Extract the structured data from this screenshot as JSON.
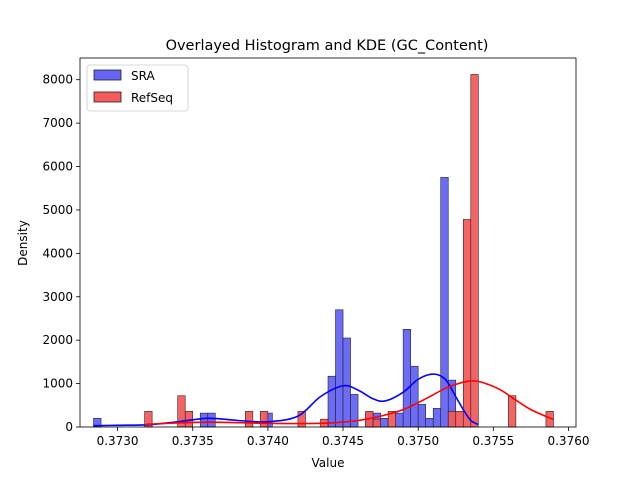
{
  "chart_data": {
    "type": "histogram+kde",
    "title": "Overlayed Histogram and KDE (GC_Content)",
    "xlabel": "Value",
    "ylabel": "Density",
    "xlim": [
      0.37275,
      0.37605
    ],
    "ylim": [
      0,
      8500
    ],
    "xticks": [
      0.373,
      0.3735,
      0.374,
      0.3745,
      0.375,
      0.3755,
      0.376
    ],
    "xtick_labels": [
      "0.3730",
      "0.3735",
      "0.3740",
      "0.3745",
      "0.3750",
      "0.3755",
      "0.3760"
    ],
    "yticks": [
      0,
      1000,
      2000,
      3000,
      4000,
      5000,
      6000,
      7000,
      8000
    ],
    "ytick_labels": [
      "0",
      "1000",
      "2000",
      "3000",
      "4000",
      "5000",
      "6000",
      "7000",
      "8000"
    ],
    "legend": {
      "placement": "top-left",
      "entries": [
        "SRA",
        "RefSeq"
      ]
    },
    "grid": false,
    "series": [
      {
        "name": "SRA",
        "color": "#0000ff",
        "fill": "#6464f5",
        "bins": [
          {
            "x0": 0.37284,
            "x1": 0.37289,
            "y": 200
          },
          {
            "x0": 0.37355,
            "x1": 0.3736,
            "y": 320
          },
          {
            "x0": 0.3736,
            "x1": 0.37365,
            "y": 320
          },
          {
            "x0": 0.37398,
            "x1": 0.37403,
            "y": 320
          },
          {
            "x0": 0.3744,
            "x1": 0.37445,
            "y": 1170
          },
          {
            "x0": 0.37445,
            "x1": 0.3745,
            "y": 2700
          },
          {
            "x0": 0.3745,
            "x1": 0.37455,
            "y": 2050
          },
          {
            "x0": 0.37455,
            "x1": 0.3746,
            "y": 750
          },
          {
            "x0": 0.37465,
            "x1": 0.3747,
            "y": 320
          },
          {
            "x0": 0.3747,
            "x1": 0.37475,
            "y": 320
          },
          {
            "x0": 0.37475,
            "x1": 0.3748,
            "y": 200
          },
          {
            "x0": 0.37485,
            "x1": 0.3749,
            "y": 320
          },
          {
            "x0": 0.3749,
            "x1": 0.37495,
            "y": 2250
          },
          {
            "x0": 0.37495,
            "x1": 0.375,
            "y": 1400
          },
          {
            "x0": 0.375,
            "x1": 0.37505,
            "y": 520
          },
          {
            "x0": 0.37505,
            "x1": 0.3751,
            "y": 200
          },
          {
            "x0": 0.3751,
            "x1": 0.37515,
            "y": 430
          },
          {
            "x0": 0.37515,
            "x1": 0.3752,
            "y": 5750
          },
          {
            "x0": 0.3752,
            "x1": 0.37525,
            "y": 1080
          }
        ],
        "kde": [
          [
            0.37284,
            30
          ],
          [
            0.373,
            40
          ],
          [
            0.3732,
            50
          ],
          [
            0.3734,
            120
          ],
          [
            0.3736,
            200
          ],
          [
            0.3738,
            150
          ],
          [
            0.374,
            120
          ],
          [
            0.3742,
            250
          ],
          [
            0.37435,
            700
          ],
          [
            0.3745,
            950
          ],
          [
            0.3746,
            850
          ],
          [
            0.3747,
            650
          ],
          [
            0.37478,
            600
          ],
          [
            0.3749,
            800
          ],
          [
            0.375,
            1100
          ],
          [
            0.3751,
            1220
          ],
          [
            0.37518,
            1100
          ],
          [
            0.37525,
            700
          ],
          [
            0.3753,
            400
          ],
          [
            0.37535,
            150
          ],
          [
            0.3754,
            60
          ]
        ]
      },
      {
        "name": "RefSeq",
        "color": "#ff0000",
        "fill": "#f55b5b",
        "bins": [
          {
            "x0": 0.37318,
            "x1": 0.37323,
            "y": 360
          },
          {
            "x0": 0.3734,
            "x1": 0.37345,
            "y": 720
          },
          {
            "x0": 0.37345,
            "x1": 0.3735,
            "y": 360
          },
          {
            "x0": 0.37385,
            "x1": 0.3739,
            "y": 360
          },
          {
            "x0": 0.37395,
            "x1": 0.374,
            "y": 360
          },
          {
            "x0": 0.3742,
            "x1": 0.37425,
            "y": 360
          },
          {
            "x0": 0.37435,
            "x1": 0.3744,
            "y": 180
          },
          {
            "x0": 0.37465,
            "x1": 0.3747,
            "y": 360
          },
          {
            "x0": 0.3747,
            "x1": 0.37475,
            "y": 180
          },
          {
            "x0": 0.3748,
            "x1": 0.37485,
            "y": 360
          },
          {
            "x0": 0.3752,
            "x1": 0.37525,
            "y": 360
          },
          {
            "x0": 0.37525,
            "x1": 0.3753,
            "y": 360
          },
          {
            "x0": 0.3753,
            "x1": 0.37535,
            "y": 4780
          },
          {
            "x0": 0.37535,
            "x1": 0.3754,
            "y": 8120
          },
          {
            "x0": 0.3756,
            "x1": 0.37565,
            "y": 720
          },
          {
            "x0": 0.37585,
            "x1": 0.3759,
            "y": 360
          }
        ],
        "kde": [
          [
            0.37318,
            60
          ],
          [
            0.3733,
            80
          ],
          [
            0.37345,
            100
          ],
          [
            0.3736,
            110
          ],
          [
            0.3738,
            100
          ],
          [
            0.374,
            85
          ],
          [
            0.3742,
            80
          ],
          [
            0.3744,
            90
          ],
          [
            0.3746,
            150
          ],
          [
            0.37475,
            250
          ],
          [
            0.3749,
            400
          ],
          [
            0.37505,
            650
          ],
          [
            0.3752,
            920
          ],
          [
            0.37535,
            1060
          ],
          [
            0.37545,
            1000
          ],
          [
            0.37555,
            850
          ],
          [
            0.37565,
            620
          ],
          [
            0.37575,
            400
          ],
          [
            0.3759,
            170
          ]
        ]
      }
    ]
  }
}
